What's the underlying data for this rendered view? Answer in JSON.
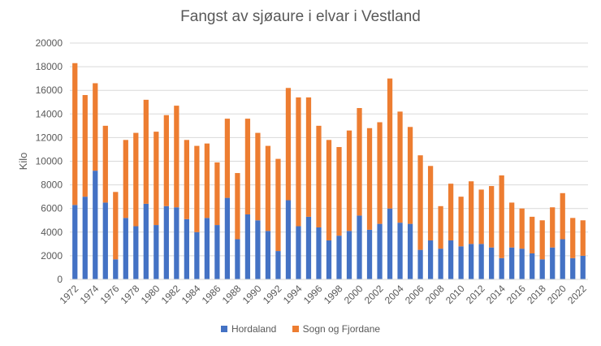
{
  "chart_data": {
    "type": "bar",
    "stacked": true,
    "title": "Fangst av sjøaure i elvar i  Vestland",
    "xlabel": "",
    "ylabel": "Kilo",
    "ylim": [
      0,
      20000
    ],
    "ytick_step": 2000,
    "yticks": [
      "0",
      "2000",
      "4000",
      "6000",
      "8000",
      "10000",
      "12000",
      "14000",
      "16000",
      "18000",
      "20000"
    ],
    "grid": true,
    "legend_position": "bottom",
    "categories": [
      "1972",
      "1973",
      "1974",
      "1975",
      "1976",
      "1977",
      "1978",
      "1979",
      "1980",
      "1981",
      "1982",
      "1983",
      "1984",
      "1985",
      "1986",
      "1987",
      "1988",
      "1989",
      "1990",
      "1991",
      "1992",
      "1993",
      "1994",
      "1995",
      "1996",
      "1997",
      "1998",
      "1999",
      "2000",
      "2001",
      "2002",
      "2003",
      "2004",
      "2005",
      "2006",
      "2007",
      "2008",
      "2009",
      "2010",
      "2011",
      "2012",
      "2013",
      "2014",
      "2015",
      "2016",
      "2017",
      "2018",
      "2019",
      "2020",
      "2021",
      "2022"
    ],
    "xtick_labels": [
      "1972",
      "1974",
      "1976",
      "1978",
      "1980",
      "1982",
      "1984",
      "1986",
      "1988",
      "1990",
      "1992",
      "1994",
      "1996",
      "1998",
      "2000",
      "2002",
      "2004",
      "2006",
      "2008",
      "2010",
      "2012",
      "2014",
      "2016",
      "2018",
      "2020",
      "2022"
    ],
    "series": [
      {
        "name": "Hordaland",
        "color": "#4472c4",
        "values": [
          6300,
          7000,
          9200,
          6500,
          1700,
          5200,
          4500,
          6400,
          4600,
          6200,
          6100,
          5100,
          4000,
          5200,
          4600,
          6900,
          3400,
          5500,
          5000,
          4100,
          2400,
          6700,
          4500,
          5300,
          4400,
          3300,
          3700,
          4100,
          5400,
          4200,
          4700,
          6000,
          4800,
          4700,
          2500,
          3300,
          2600,
          3300,
          2800,
          3000,
          3000,
          2700,
          1800,
          2700,
          2600,
          2200,
          1700,
          2700,
          3400,
          1800,
          2000
        ]
      },
      {
        "name": "Sogn og Fjordane",
        "color": "#ed7d31",
        "values": [
          12000,
          8600,
          7400,
          6500,
          5700,
          6600,
          7900,
          8800,
          7900,
          7700,
          8600,
          6700,
          7300,
          6300,
          5300,
          6700,
          5600,
          8100,
          7400,
          7200,
          7800,
          9500,
          10900,
          10100,
          8600,
          8500,
          7500,
          8500,
          9100,
          8600,
          8600,
          11000,
          9400,
          8200,
          8000,
          6300,
          3600,
          4800,
          4200,
          5300,
          4600,
          5200,
          7000,
          3800,
          3400,
          3100,
          3300,
          3400,
          3900,
          3400,
          3000
        ]
      }
    ]
  }
}
